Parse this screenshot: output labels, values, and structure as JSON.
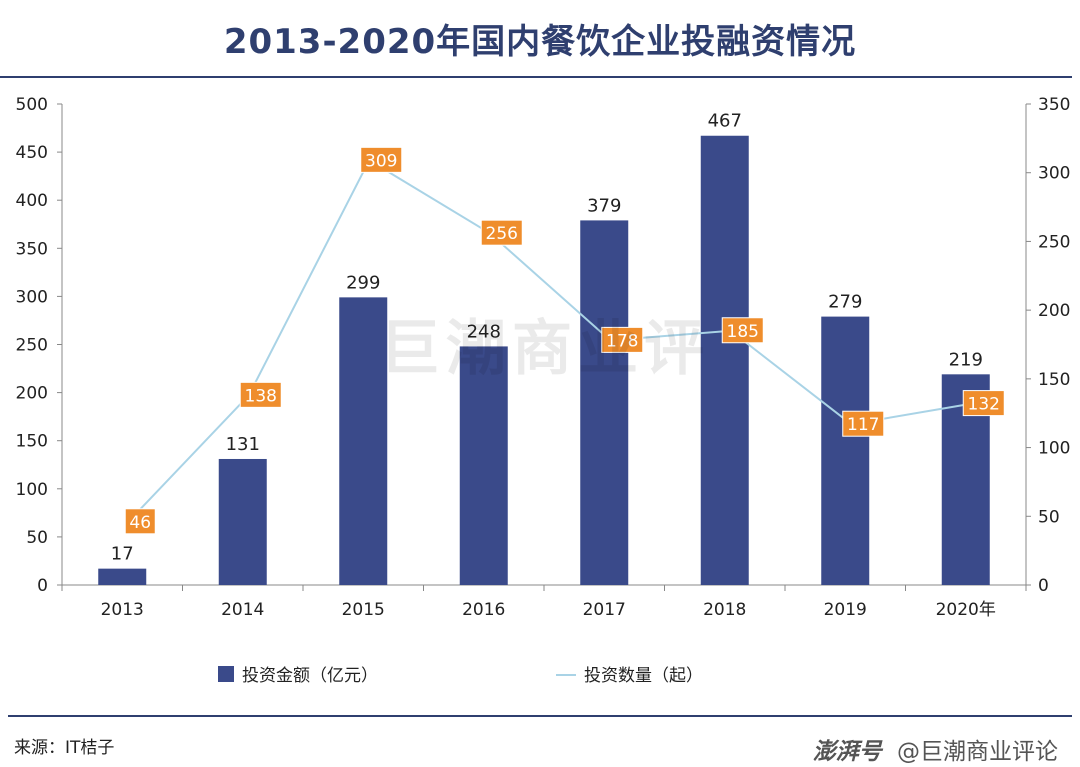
{
  "title": "2013-2020年国内餐饮企业投融资情况",
  "source": "来源：IT桔子",
  "watermark": {
    "logo": "澎湃号",
    "handle": "@巨潮商业评论"
  },
  "center_watermark": "巨潮商业评",
  "colors": {
    "bar": "#3a4a8a",
    "line": "#a9d3e6",
    "label_bg": "#ef8d2c",
    "title": "#2f3f6f"
  },
  "chart_data": {
    "type": "bar",
    "categories": [
      "2013",
      "2014",
      "2015",
      "2016",
      "2017",
      "2018",
      "2019",
      "2020年"
    ],
    "series": [
      {
        "name": "投资金额（亿元）",
        "type": "bar",
        "axis": "left",
        "values": [
          17,
          131,
          299,
          248,
          379,
          467,
          279,
          219
        ]
      },
      {
        "name": "投资数量（起）",
        "type": "line",
        "axis": "right",
        "values": [
          46,
          138,
          309,
          256,
          178,
          185,
          117,
          132
        ]
      }
    ],
    "ylim_left": [
      0,
      500
    ],
    "yticks_left": [
      0,
      50,
      100,
      150,
      200,
      250,
      300,
      350,
      400,
      450,
      500
    ],
    "ylim_right": [
      0,
      350
    ],
    "yticks_right": [
      0,
      50,
      100,
      150,
      200,
      250,
      300,
      350
    ],
    "grid": false,
    "legend_position": "bottom"
  }
}
